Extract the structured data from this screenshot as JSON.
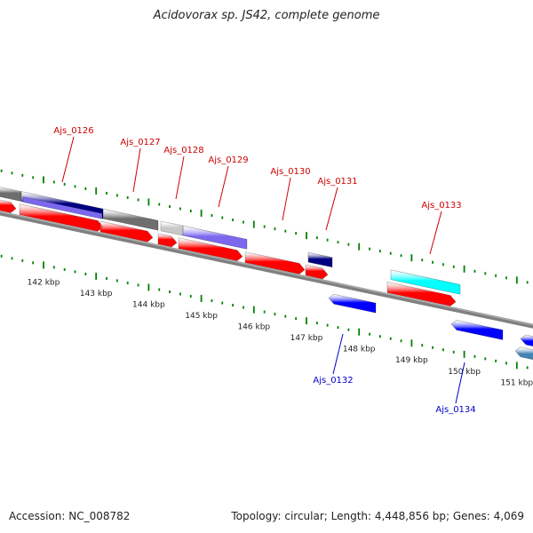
{
  "title": "Acidovorax sp. JS42, complete genome",
  "footer": {
    "accession": "Accession: NC_008782",
    "topology": "Topology: circular; Length: 4,448,856 bp; Genes: 4,069"
  },
  "colors": {
    "cds": "#ff0000",
    "gene_navy": "#000080",
    "gene_violet": "#7b68ee",
    "gene_gray": "#6e6e6e",
    "gene_lightgray": "#c8c8c8",
    "gene_cyan": "#00ffff",
    "gene_blue": "#0000ff",
    "gene_steel": "#4682b4",
    "backbone": "#808080",
    "tick": "#008000",
    "label_forward": "#cc0000",
    "label_reverse": "#0000cc"
  },
  "chart_data": {
    "type": "genome-map",
    "view_range_kbp": [
      141.4,
      151.6
    ],
    "axis_unit": "kbp",
    "tick_labels": [
      "142 kbp",
      "143 kbp",
      "144 kbp",
      "145 kbp",
      "146 kbp",
      "147 kbp",
      "148 kbp",
      "149 kbp",
      "150 kbp",
      "151 kbp"
    ],
    "tick_values_kbp": [
      142,
      143,
      144,
      145,
      146,
      147,
      148,
      149,
      150,
      151
    ],
    "genes": [
      {
        "label": "Ajs_0126",
        "strand": "+",
        "start_kbp": 141.6,
        "end_kbp": 142.9
      },
      {
        "label": "Ajs_0127",
        "strand": "+",
        "start_kbp": 142.9,
        "end_kbp": 143.9
      },
      {
        "label": "Ajs_0128",
        "strand": "+",
        "start_kbp": 143.9,
        "end_kbp": 144.2
      },
      {
        "label": "Ajs_0129",
        "strand": "+",
        "start_kbp": 144.2,
        "end_kbp": 145.4
      },
      {
        "label": "Ajs_0130",
        "strand": "+",
        "start_kbp": 145.4,
        "end_kbp": 146.6
      },
      {
        "label": "Ajs_0131",
        "strand": "+",
        "start_kbp": 146.6,
        "end_kbp": 147.0
      },
      {
        "label": "Ajs_0132",
        "strand": "-",
        "start_kbp": 147.3,
        "end_kbp": 148.2
      },
      {
        "label": "Ajs_0133",
        "strand": "+",
        "start_kbp": 148.6,
        "end_kbp": 149.9
      },
      {
        "label": "Ajs_0134",
        "strand": "-",
        "start_kbp": 150.0,
        "end_kbp": 151.0
      }
    ]
  }
}
